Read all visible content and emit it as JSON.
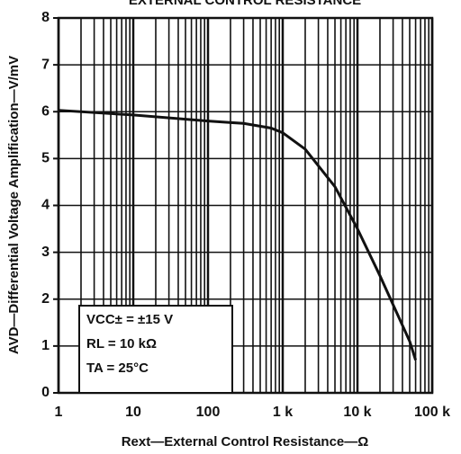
{
  "chart_data": {
    "type": "line",
    "title": "EXTERNAL CONTROL RESISTANCE",
    "x_label": "Rext—External Control Resistance—Ω",
    "y_label": "AVD—Differential Voltage Amplification—V/mV",
    "annotations": [
      "VCC± = ±15 V",
      "RL = 10 kΩ",
      "TA = 25°C"
    ],
    "x": [
      1,
      10,
      100,
      300,
      700,
      1000,
      2000,
      5000,
      10000,
      20000,
      50000,
      60000
    ],
    "series": [
      {
        "name": null,
        "color": "#111111",
        "values": [
          6.03,
          5.93,
          5.8,
          5.75,
          5.65,
          5.55,
          5.2,
          4.4,
          3.5,
          2.5,
          1.1,
          0.7
        ]
      }
    ],
    "xlim": [
      1,
      100000
    ],
    "ylim": [
      0,
      8
    ],
    "xticks": [
      1,
      10,
      100,
      {
        "value": 1000,
        "label": "1 k"
      },
      {
        "value": 10000,
        "label": "10 k"
      },
      {
        "value": 100000,
        "label": "100 k"
      }
    ],
    "yticks": [
      0,
      1,
      2,
      3,
      4,
      5,
      6,
      7,
      8
    ],
    "x_log": true,
    "grid": true
  }
}
